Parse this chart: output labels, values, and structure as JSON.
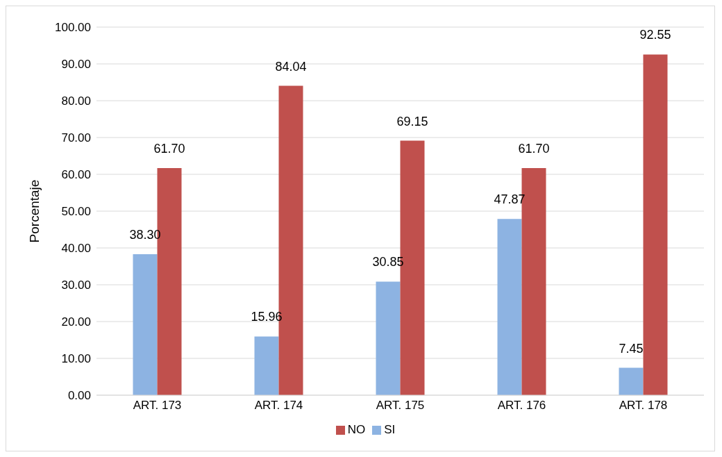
{
  "chart_data": {
    "type": "bar",
    "ylabel": "Porcentaje",
    "categories": [
      "ART. 173",
      "ART. 174",
      "ART. 175",
      "ART. 176",
      "ART. 178"
    ],
    "series": [
      {
        "name": "SI",
        "color": "#8db3e2",
        "values": [
          38.3,
          15.96,
          30.85,
          47.87,
          7.45
        ],
        "value_labels": [
          "38.30",
          "15.96",
          "30.85",
          "47.87",
          "7.45"
        ]
      },
      {
        "name": "NO",
        "color": "#c0504d",
        "values": [
          61.7,
          84.04,
          69.15,
          61.7,
          92.55
        ],
        "value_labels": [
          "61.70",
          "84.04",
          "69.15",
          "61.70",
          "92.55"
        ]
      }
    ],
    "ylim": [
      0,
      100
    ],
    "yticks": [
      {
        "value": 0,
        "label": "0.00"
      },
      {
        "value": 10,
        "label": "10.00"
      },
      {
        "value": 20,
        "label": "20.00"
      },
      {
        "value": 30,
        "label": "30.00"
      },
      {
        "value": 40,
        "label": "40.00"
      },
      {
        "value": 50,
        "label": "50.00"
      },
      {
        "value": 60,
        "label": "60.00"
      },
      {
        "value": 70,
        "label": "70.00"
      },
      {
        "value": 80,
        "label": "80.00"
      },
      {
        "value": 90,
        "label": "90.00"
      },
      {
        "value": 100,
        "label": "100.00"
      }
    ],
    "grid": "y",
    "legend": "bottom"
  }
}
